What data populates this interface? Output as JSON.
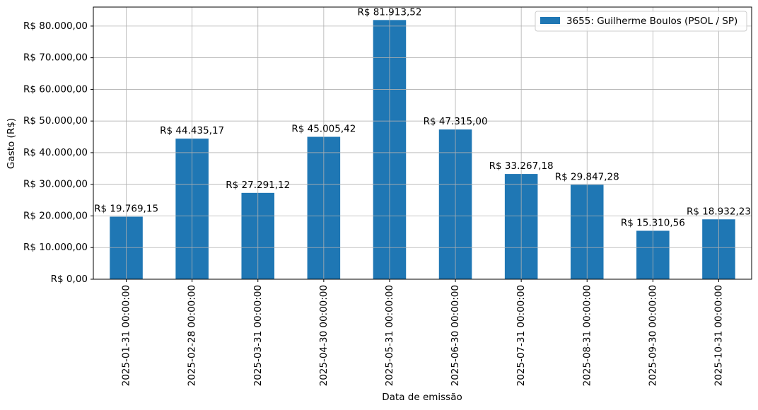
{
  "chart_data": {
    "type": "bar",
    "xlabel": "Data de emissão",
    "ylabel": "Gasto (R$)",
    "categories": [
      "2025-01-31 00:00:00",
      "2025-02-28 00:00:00",
      "2025-03-31 00:00:00",
      "2025-04-30 00:00:00",
      "2025-05-31 00:00:00",
      "2025-06-30 00:00:00",
      "2025-07-31 00:00:00",
      "2025-08-31 00:00:00",
      "2025-09-30 00:00:00",
      "2025-10-31 00:00:00"
    ],
    "series": [
      {
        "name": "3655: Guilherme Boulos (PSOL / SP)",
        "color": "#1f77b4",
        "values": [
          19769.15,
          44435.17,
          27291.12,
          45005.42,
          81913.52,
          47315.0,
          33267.18,
          29847.28,
          15310.56,
          18932.23
        ],
        "value_labels": [
          "R$ 19.769,15",
          "R$ 44.435,17",
          "R$ 27.291,12",
          "R$ 45.005,42",
          "R$ 81.913,52",
          "R$ 47.315,00",
          "R$ 33.267,18",
          "R$ 29.847,28",
          "R$ 15.310,56",
          "R$ 18.932,23"
        ]
      }
    ],
    "ylim": [
      0,
      86009
    ],
    "yticks": [
      {
        "value": 0,
        "label": "R$ 0,00"
      },
      {
        "value": 10000,
        "label": "R$ 10.000,00"
      },
      {
        "value": 20000,
        "label": "R$ 20.000,00"
      },
      {
        "value": 30000,
        "label": "R$ 30.000,00"
      },
      {
        "value": 40000,
        "label": "R$ 40.000,00"
      },
      {
        "value": 50000,
        "label": "R$ 50.000,00"
      },
      {
        "value": 60000,
        "label": "R$ 60.000,00"
      },
      {
        "value": 70000,
        "label": "R$ 70.000,00"
      },
      {
        "value": 80000,
        "label": "R$ 80.000,00"
      }
    ],
    "grid": true,
    "legend": "upper right"
  }
}
